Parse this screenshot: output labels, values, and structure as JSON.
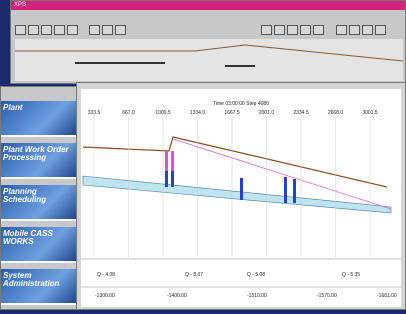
{
  "window_top": {
    "title": "XPS"
  },
  "profile": {
    "header": "Time 03:00:00 Step 4080",
    "x_ticks": [
      "333.5",
      "667.0",
      "1000.5",
      "1334.0",
      "1667.5",
      "2001.0",
      "2334.5",
      "2668.0",
      "3001.5"
    ],
    "flows": [
      "Q - 4.08",
      "Q - 8.07",
      "Q - 5.08",
      "Q - 5.35"
    ],
    "stations": [
      "-1300.00",
      "-1400.00",
      "-1510.00",
      "-1570.00",
      "-1681.00"
    ]
  },
  "menu": {
    "items": [
      "Plant",
      "Plant Work Order Processing",
      "Planning Scheduling",
      "Mobile CASS WORKS",
      "System Administration"
    ]
  }
}
